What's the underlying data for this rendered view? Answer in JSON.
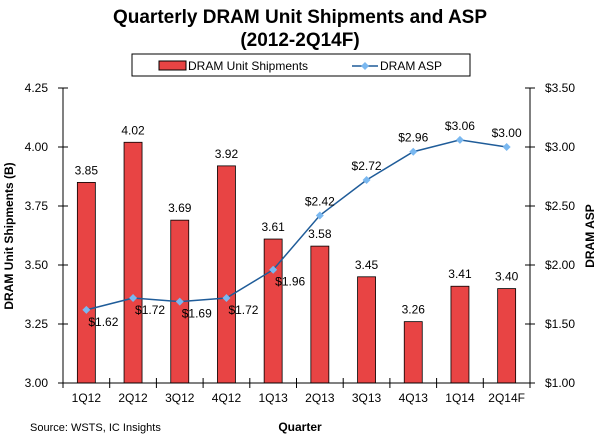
{
  "chart_data": {
    "type": "bar+line",
    "title": "Quarterly DRAM Unit Shipments and ASP",
    "subtitle": "(2012-2Q14F)",
    "xlabel": "Quarter",
    "ylabel": "DRAM Unit Shipments (B)",
    "y2label": "DRAM ASP",
    "source": "Source: WSTS, IC Insights",
    "categories": [
      "1Q12",
      "2Q12",
      "3Q12",
      "4Q12",
      "1Q13",
      "2Q13",
      "3Q13",
      "4Q13",
      "1Q14",
      "2Q14F"
    ],
    "ylim": [
      3.0,
      4.25
    ],
    "yticks": [
      "3.00",
      "3.25",
      "3.50",
      "3.75",
      "4.00",
      "4.25"
    ],
    "y2lim": [
      1.0,
      3.5
    ],
    "y2ticks": [
      "$1.00",
      "$1.50",
      "$2.00",
      "$2.50",
      "$3.00",
      "$3.50"
    ],
    "legend_position": "top",
    "grid": false,
    "series": [
      {
        "name": "DRAM Unit Shipments",
        "type": "bar",
        "axis": "left",
        "color": "#e84444",
        "values": [
          3.85,
          4.02,
          3.69,
          3.92,
          3.61,
          3.58,
          3.45,
          3.26,
          3.41,
          3.4
        ],
        "labels": [
          "3.85",
          "4.02",
          "3.69",
          "3.92",
          "3.61",
          "3.58",
          "3.45",
          "3.26",
          "3.41",
          "3.40"
        ]
      },
      {
        "name": "DRAM ASP",
        "type": "line",
        "axis": "right",
        "color": "#1f5c99",
        "marker_color": "#7ab8f0",
        "values": [
          1.62,
          1.72,
          1.69,
          1.72,
          1.96,
          2.42,
          2.72,
          2.96,
          3.06,
          3.0
        ],
        "labels": [
          "$1.62",
          "$1.72",
          "$1.69",
          "$1.72",
          "$1.96",
          "$2.42",
          "$2.72",
          "$2.96",
          "$3.06",
          "$3.00"
        ]
      }
    ]
  }
}
